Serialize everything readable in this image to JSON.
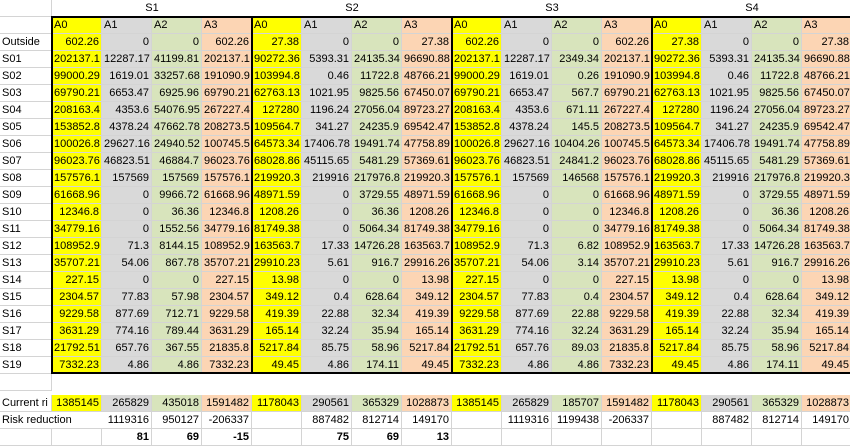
{
  "groups": [
    "S1",
    "S2",
    "S3",
    "S4"
  ],
  "subheaders": [
    "A0",
    "A1",
    "A2",
    "A3"
  ],
  "row_labels": [
    "Outside",
    "S01",
    "S02",
    "S03",
    "S04",
    "S05",
    "S06",
    "S07",
    "S08",
    "S09",
    "S10",
    "S11",
    "S12",
    "S13",
    "S14",
    "S15",
    "S16",
    "S17",
    "S18",
    "S19"
  ],
  "rows": [
    [
      "602.26",
      "0",
      "0",
      "602.26",
      "27.38",
      "0",
      "0",
      "27.38",
      "602.26",
      "0",
      "0",
      "602.26",
      "27.38",
      "0",
      "0",
      "27.38"
    ],
    [
      "202137.1",
      "12287.17",
      "41199.81",
      "202137.1",
      "90272.36",
      "5393.31",
      "24135.34",
      "96690.88",
      "202137.1",
      "12287.17",
      "2349.34",
      "202137.1",
      "90272.36",
      "5393.31",
      "24135.34",
      "96690.88"
    ],
    [
      "99000.29",
      "1619.01",
      "33257.68",
      "191090.9",
      "103994.8",
      "0.46",
      "11722.8",
      "48766.21",
      "99000.29",
      "1619.01",
      "0.26",
      "191090.9",
      "103994.8",
      "0.46",
      "11722.8",
      "48766.21"
    ],
    [
      "69790.21",
      "6653.47",
      "6925.96",
      "69790.21",
      "62763.13",
      "1021.95",
      "9825.56",
      "67450.07",
      "69790.21",
      "6653.47",
      "567.7",
      "69790.21",
      "62763.13",
      "1021.95",
      "9825.56",
      "67450.07"
    ],
    [
      "208163.4",
      "4353.6",
      "54076.95",
      "267227.4",
      "127280",
      "1196.24",
      "27056.04",
      "89723.27",
      "208163.4",
      "4353.6",
      "671.11",
      "267227.4",
      "127280",
      "1196.24",
      "27056.04",
      "89723.27"
    ],
    [
      "153852.8",
      "4378.24",
      "47662.78",
      "208273.5",
      "109564.7",
      "341.27",
      "24235.9",
      "69542.47",
      "153852.8",
      "4378.24",
      "145.5",
      "208273.5",
      "109564.7",
      "341.27",
      "24235.9",
      "69542.47"
    ],
    [
      "100026.8",
      "29627.16",
      "24940.52",
      "100745.5",
      "64573.34",
      "17406.78",
      "19491.74",
      "47758.89",
      "100026.8",
      "29627.16",
      "10404.26",
      "100745.5",
      "64573.34",
      "17406.78",
      "19491.74",
      "47758.89"
    ],
    [
      "96023.76",
      "46823.51",
      "46884.7",
      "96023.76",
      "68028.86",
      "45115.65",
      "5481.29",
      "57369.61",
      "96023.76",
      "46823.51",
      "24841.2",
      "96023.76",
      "68028.86",
      "45115.65",
      "5481.29",
      "57369.61"
    ],
    [
      "157576.1",
      "157569",
      "157569",
      "157576.1",
      "219920.3",
      "219916",
      "217976.8",
      "219920.3",
      "157576.1",
      "157569",
      "146568",
      "157576.1",
      "219920.3",
      "219916",
      "217976.8",
      "219920.3"
    ],
    [
      "61668.96",
      "0",
      "9966.72",
      "61668.96",
      "48971.59",
      "0",
      "3729.55",
      "48971.59",
      "61668.96",
      "0",
      "0",
      "61668.96",
      "48971.59",
      "0",
      "3729.55",
      "48971.59"
    ],
    [
      "12346.8",
      "0",
      "36.36",
      "12346.8",
      "1208.26",
      "0",
      "36.36",
      "1208.26",
      "12346.8",
      "0",
      "0",
      "12346.8",
      "1208.26",
      "0",
      "36.36",
      "1208.26"
    ],
    [
      "34779.16",
      "0",
      "1552.56",
      "34779.16",
      "81749.38",
      "0",
      "5064.34",
      "81749.38",
      "34779.16",
      "0",
      "0",
      "34779.16",
      "81749.38",
      "0",
      "5064.34",
      "81749.38"
    ],
    [
      "108952.9",
      "71.3",
      "8144.15",
      "108952.9",
      "163563.7",
      "17.33",
      "14726.28",
      "163563.7",
      "108952.9",
      "71.3",
      "6.82",
      "108952.9",
      "163563.7",
      "17.33",
      "14726.28",
      "163563.7"
    ],
    [
      "35707.21",
      "54.06",
      "867.78",
      "35707.21",
      "29910.23",
      "5.61",
      "916.7",
      "29916.26",
      "35707.21",
      "54.06",
      "3.14",
      "35707.21",
      "29910.23",
      "5.61",
      "916.7",
      "29916.26"
    ],
    [
      "227.15",
      "0",
      "0",
      "227.15",
      "13.98",
      "0",
      "0",
      "13.98",
      "227.15",
      "0",
      "0",
      "227.15",
      "13.98",
      "0",
      "0",
      "13.98"
    ],
    [
      "2304.57",
      "77.83",
      "57.98",
      "2304.57",
      "349.12",
      "0.4",
      "628.64",
      "349.12",
      "2304.57",
      "77.83",
      "0.4",
      "2304.57",
      "349.12",
      "0.4",
      "628.64",
      "349.12"
    ],
    [
      "9229.58",
      "877.69",
      "712.71",
      "9229.58",
      "419.39",
      "22.88",
      "32.34",
      "419.39",
      "9229.58",
      "877.69",
      "22.88",
      "9229.58",
      "419.39",
      "22.88",
      "32.34",
      "419.39"
    ],
    [
      "3631.29",
      "774.16",
      "789.44",
      "3631.29",
      "165.14",
      "32.24",
      "35.94",
      "165.14",
      "3631.29",
      "774.16",
      "32.24",
      "3631.29",
      "165.14",
      "32.24",
      "35.94",
      "165.14"
    ],
    [
      "21792.51",
      "657.76",
      "367.55",
      "21835.8",
      "5217.84",
      "85.75",
      "58.96",
      "5217.84",
      "21792.51",
      "657.76",
      "89.03",
      "21835.8",
      "5217.84",
      "85.75",
      "58.96",
      "5217.84"
    ],
    [
      "7332.23",
      "4.86",
      "4.86",
      "7332.23",
      "49.45",
      "4.86",
      "174.11",
      "49.45",
      "7332.23",
      "4.86",
      "4.86",
      "7332.23",
      "49.45",
      "4.86",
      "174.11",
      "49.45"
    ]
  ],
  "summary": {
    "current_label": "Current ri",
    "current": [
      "1385145",
      "265829",
      "435018",
      "1591482",
      "1178043",
      "290561",
      "365329",
      "1028873",
      "1385145",
      "265829",
      "185707",
      "1591482",
      "1178043",
      "290561",
      "365329",
      "1028873"
    ],
    "risk_label": "Risk reduction",
    "risk": [
      "",
      "1119316",
      "950127",
      "-206337",
      "",
      "887482",
      "812714",
      "149170",
      "",
      "1119316",
      "1199438",
      "-206337",
      "",
      "887482",
      "812714",
      "149170"
    ],
    "percent": [
      "",
      "81",
      "69",
      "-15",
      "",
      "75",
      "69",
      "13",
      "",
      "",
      "",
      "",
      "",
      "",
      "",
      ""
    ]
  },
  "colors": {
    "A0": "#ffff00",
    "A1": "#d9d9d9",
    "A2": "#d8e4bc",
    "A3": "#fcd5b4",
    "grid_line": "#d4d4d4",
    "block_border": "#000000"
  }
}
